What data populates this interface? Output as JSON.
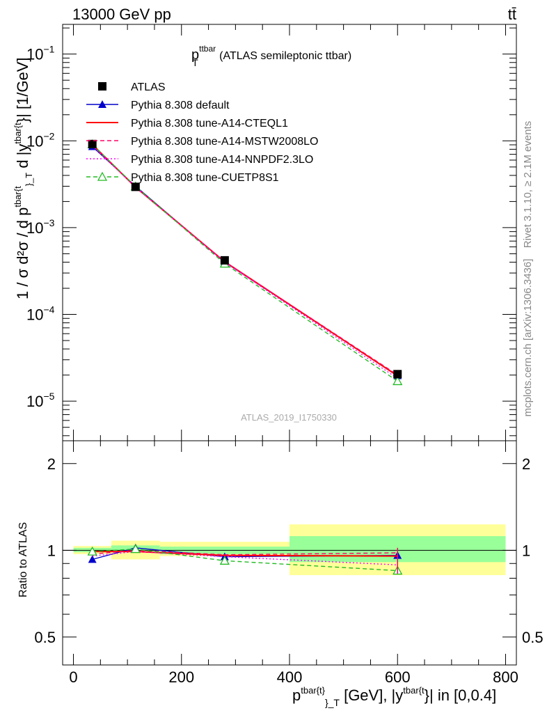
{
  "header": {
    "left": "13000 GeV pp",
    "right": "tt̄"
  },
  "side_labels": {
    "rivet": "Rivet 3.1.10, ≥ 2.1M events",
    "mcplots": "mcplots.cern.ch [arXiv:1306.3436]"
  },
  "watermark": "ATLAS_2019_I1750330",
  "plot_title": {
    "main": "p",
    "sup": "ttbar",
    "sub": "T",
    "rest": " (ATLAS semileptonic ttbar)"
  },
  "axis": {
    "ylabel_main": "1 / σ d²σ / d p",
    "ylabel_sup1": "tbar{t",
    "ylabel_sub1": "}_T",
    "ylabel_tail": " d |y",
    "ylabel_sup2": "tbar{t",
    "ylabel_end": "}| [1/GeV]",
    "ratio_ylabel": "Ratio to ATLAS",
    "xlabel_main": "p",
    "xlabel_sup1": "tbar{t}",
    "xlabel_sub1": "}_T",
    "xlabel_mid": " [GeV], |y",
    "xlabel_sup2": "tbar{t",
    "xlabel_end": "}| in [0,0.4]",
    "xticks": [
      "0",
      "200",
      "400",
      "600",
      "800"
    ],
    "yticks_main": [
      {
        "base": "10",
        "exp": "−1",
        "v": 0.1
      },
      {
        "base": "10",
        "exp": "−2",
        "v": 0.01
      },
      {
        "base": "10",
        "exp": "−3",
        "v": 0.001
      },
      {
        "base": "10",
        "exp": "−4",
        "v": 0.0001
      },
      {
        "base": "10",
        "exp": "−5",
        "v": 1e-05
      }
    ],
    "yticks_ratio": [
      {
        "label": "2",
        "v": 2
      },
      {
        "label": "1",
        "v": 1
      },
      {
        "label": "0.5",
        "v": 0.5
      }
    ]
  },
  "colors": {
    "atlas": "#000000",
    "default": "#0000cc",
    "cteql1": "#ff0000",
    "mstw": "#ff0066",
    "nnpdf": "#ff00ff",
    "cuetp8s1": "#22bb22",
    "band_yellow": "#ffff99",
    "band_green": "#99ff99"
  },
  "chart_data": {
    "type": "line",
    "x_range": [
      -20,
      820
    ],
    "y_range_main": [
      3.5e-06,
      0.22
    ],
    "y_range_ratio": [
      0.4,
      2.4
    ],
    "log_y_main": true,
    "log_y_ratio": true,
    "legend_placement": "top-left",
    "bins": [
      {
        "lo": 0,
        "hi": 70,
        "x": 35
      },
      {
        "lo": 70,
        "hi": 160,
        "x": 115
      },
      {
        "lo": 160,
        "hi": 400,
        "x": 280
      },
      {
        "lo": 400,
        "hi": 800,
        "x": 600
      }
    ],
    "series": [
      {
        "name": "ATLAS",
        "key": "atlas",
        "style": "data",
        "values": [
          0.0092,
          0.00295,
          0.00042,
          2.05e-05
        ],
        "ratio": [
          1,
          1,
          1,
          1
        ]
      },
      {
        "name": "Pythia 8.308 default",
        "key": "default",
        "style": "solid-tri",
        "values": [
          0.0086,
          0.003,
          0.0004,
          1.97e-05
        ],
        "ratio": [
          0.93,
          1.02,
          0.95,
          0.96
        ]
      },
      {
        "name": "Pythia 8.308 tune-A14-CTEQL1",
        "key": "cteql1",
        "style": "solid",
        "values": [
          0.0091,
          0.00292,
          0.000405,
          1.96e-05
        ],
        "ratio": [
          0.99,
          0.99,
          0.96,
          0.955
        ]
      },
      {
        "name": "Pythia 8.308 tune-A14-MSTW2008LO",
        "key": "mstw",
        "style": "dashed",
        "values": [
          0.0089,
          0.00294,
          0.000405,
          2.01e-05
        ],
        "ratio": [
          0.97,
          1.0,
          0.965,
          0.98
        ]
      },
      {
        "name": "Pythia 8.308 tune-A14-NNPDF2.3LO",
        "key": "nnpdf",
        "style": "dotted",
        "values": [
          0.0088,
          0.00292,
          0.0004,
          1.83e-05
        ],
        "ratio": [
          0.955,
          0.99,
          0.95,
          0.89
        ]
      },
      {
        "name": "Pythia 8.308 tune-CUETP8S1",
        "key": "cuetp8s1",
        "style": "dashed-opentri",
        "values": [
          0.0091,
          0.00298,
          0.000385,
          1.7e-05
        ],
        "ratio": [
          0.99,
          1.01,
          0.92,
          0.85
        ]
      }
    ],
    "uncertainty": {
      "green": [
        [
          0.985,
          1.02
        ],
        [
          0.985,
          1.04
        ],
        [
          0.97,
          1.03
        ],
        [
          0.91,
          1.12
        ]
      ],
      "yellow": [
        [
          0.97,
          1.035
        ],
        [
          0.93,
          1.08
        ],
        [
          0.955,
          1.07
        ],
        [
          0.82,
          1.23
        ]
      ]
    }
  }
}
